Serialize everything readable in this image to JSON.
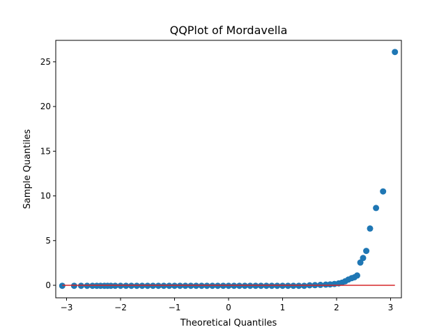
{
  "chart_data": {
    "type": "scatter",
    "title": "QQPlot of Mordavella",
    "xlabel": "Theoretical Quantiles",
    "ylabel": "Sample Quantiles",
    "xlim": [
      -3.2,
      3.2
    ],
    "ylim": [
      -1.4,
      27.4
    ],
    "xticks": [
      -3,
      -2,
      -1,
      0,
      1,
      2,
      3
    ],
    "yticks": [
      0,
      5,
      10,
      15,
      20,
      25
    ],
    "marker_color": "#1f77b4",
    "reference_line": {
      "color": "#d62728",
      "x": [
        -3.08,
        3.08
      ],
      "y": [
        0,
        0
      ]
    },
    "points": [
      [
        -3.08,
        -0.05
      ],
      [
        -2.86,
        -0.05
      ],
      [
        -2.73,
        -0.05
      ],
      [
        -2.62,
        -0.05
      ],
      [
        -2.52,
        -0.05
      ],
      [
        -2.44,
        -0.05
      ],
      [
        -2.37,
        -0.05
      ],
      [
        -2.3,
        -0.05
      ],
      [
        -2.24,
        -0.05
      ],
      [
        -2.18,
        -0.05
      ],
      [
        -2.1,
        -0.05
      ],
      [
        -2.0,
        -0.05
      ],
      [
        -1.9,
        -0.05
      ],
      [
        -1.8,
        -0.05
      ],
      [
        -1.7,
        -0.05
      ],
      [
        -1.6,
        -0.05
      ],
      [
        -1.5,
        -0.05
      ],
      [
        -1.4,
        -0.05
      ],
      [
        -1.3,
        -0.05
      ],
      [
        -1.2,
        -0.05
      ],
      [
        -1.1,
        -0.05
      ],
      [
        -1.0,
        -0.05
      ],
      [
        -0.9,
        -0.05
      ],
      [
        -0.8,
        -0.05
      ],
      [
        -0.7,
        -0.05
      ],
      [
        -0.6,
        -0.05
      ],
      [
        -0.5,
        -0.05
      ],
      [
        -0.4,
        -0.05
      ],
      [
        -0.3,
        -0.05
      ],
      [
        -0.2,
        -0.05
      ],
      [
        -0.1,
        -0.05
      ],
      [
        0.0,
        -0.05
      ],
      [
        0.1,
        -0.05
      ],
      [
        0.2,
        -0.05
      ],
      [
        0.3,
        -0.05
      ],
      [
        0.4,
        -0.05
      ],
      [
        0.5,
        -0.05
      ],
      [
        0.6,
        -0.05
      ],
      [
        0.7,
        -0.05
      ],
      [
        0.8,
        -0.05
      ],
      [
        0.9,
        -0.05
      ],
      [
        1.0,
        -0.05
      ],
      [
        1.1,
        -0.05
      ],
      [
        1.2,
        -0.05
      ],
      [
        1.3,
        -0.05
      ],
      [
        1.4,
        -0.05
      ],
      [
        1.5,
        0.0
      ],
      [
        1.6,
        0.02
      ],
      [
        1.7,
        0.05
      ],
      [
        1.8,
        0.08
      ],
      [
        1.88,
        0.1
      ],
      [
        1.96,
        0.15
      ],
      [
        2.04,
        0.22
      ],
      [
        2.1,
        0.3
      ],
      [
        2.16,
        0.45
      ],
      [
        2.22,
        0.65
      ],
      [
        2.28,
        0.8
      ],
      [
        2.33,
        0.9
      ],
      [
        2.38,
        1.1
      ],
      [
        2.44,
        2.55
      ],
      [
        2.49,
        3.05
      ],
      [
        2.55,
        3.85
      ],
      [
        2.62,
        6.35
      ],
      [
        2.73,
        8.65
      ],
      [
        2.86,
        10.5
      ],
      [
        3.08,
        26.1
      ]
    ]
  }
}
